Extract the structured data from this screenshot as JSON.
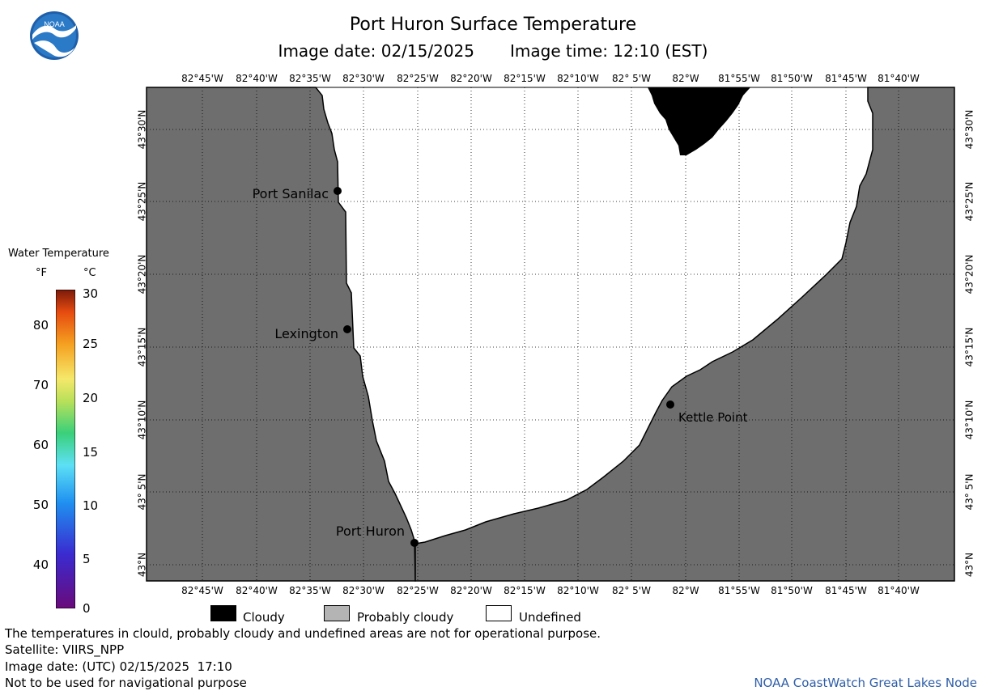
{
  "header": {
    "title": "Port Huron Surface Temperature",
    "subtitle_date": "Image date: 02/15/2025",
    "subtitle_time": "Image time: 12:10 (EST)"
  },
  "logo": {
    "text": "NOAA",
    "icon": "noaa-logo-icon"
  },
  "legend": {
    "title": "Water Temperature",
    "unit_f": "°F",
    "unit_c": "°C",
    "f_ticks": [
      "80",
      "70",
      "60",
      "50",
      "40"
    ],
    "c_ticks": [
      "30",
      "25",
      "20",
      "15",
      "10",
      "5",
      "0"
    ]
  },
  "map": {
    "lon_labels": [
      "82°45'W",
      "82°40'W",
      "82°35'W",
      "82°30'W",
      "82°25'W",
      "82°20'W",
      "82°15'W",
      "82°10'W",
      "82° 5'W",
      "82°W",
      "81°55'W",
      "81°50'W",
      "81°45'W",
      "81°40'W"
    ],
    "lat_labels": [
      "43°30'N",
      "43°25'N",
      "43°20'N",
      "43°15'N",
      "43°10'N",
      "43° 5'N",
      "43°N"
    ],
    "places": [
      "Port Sanilac",
      "Lexington",
      "Kettle Point",
      "Port Huron"
    ],
    "colors": {
      "land": "#6e6e6e",
      "cloud": "#000000",
      "undefined": "#ffffff",
      "grid": "#000000"
    }
  },
  "key": {
    "cloudy": "Cloudy",
    "probably_cloudy": "Probably cloudy",
    "undefined": "Undefined"
  },
  "footer": {
    "line1": "The temperatures in clould, probably cloudy and undefined areas are not for operational purpose.",
    "line2": "Satellite: VIIRS_NPP",
    "line3": "Image date: (UTC) 02/15/2025  17:10",
    "line4": "Not to be used for navigational purpose",
    "credit": "NOAA CoastWatch Great Lakes Node"
  }
}
